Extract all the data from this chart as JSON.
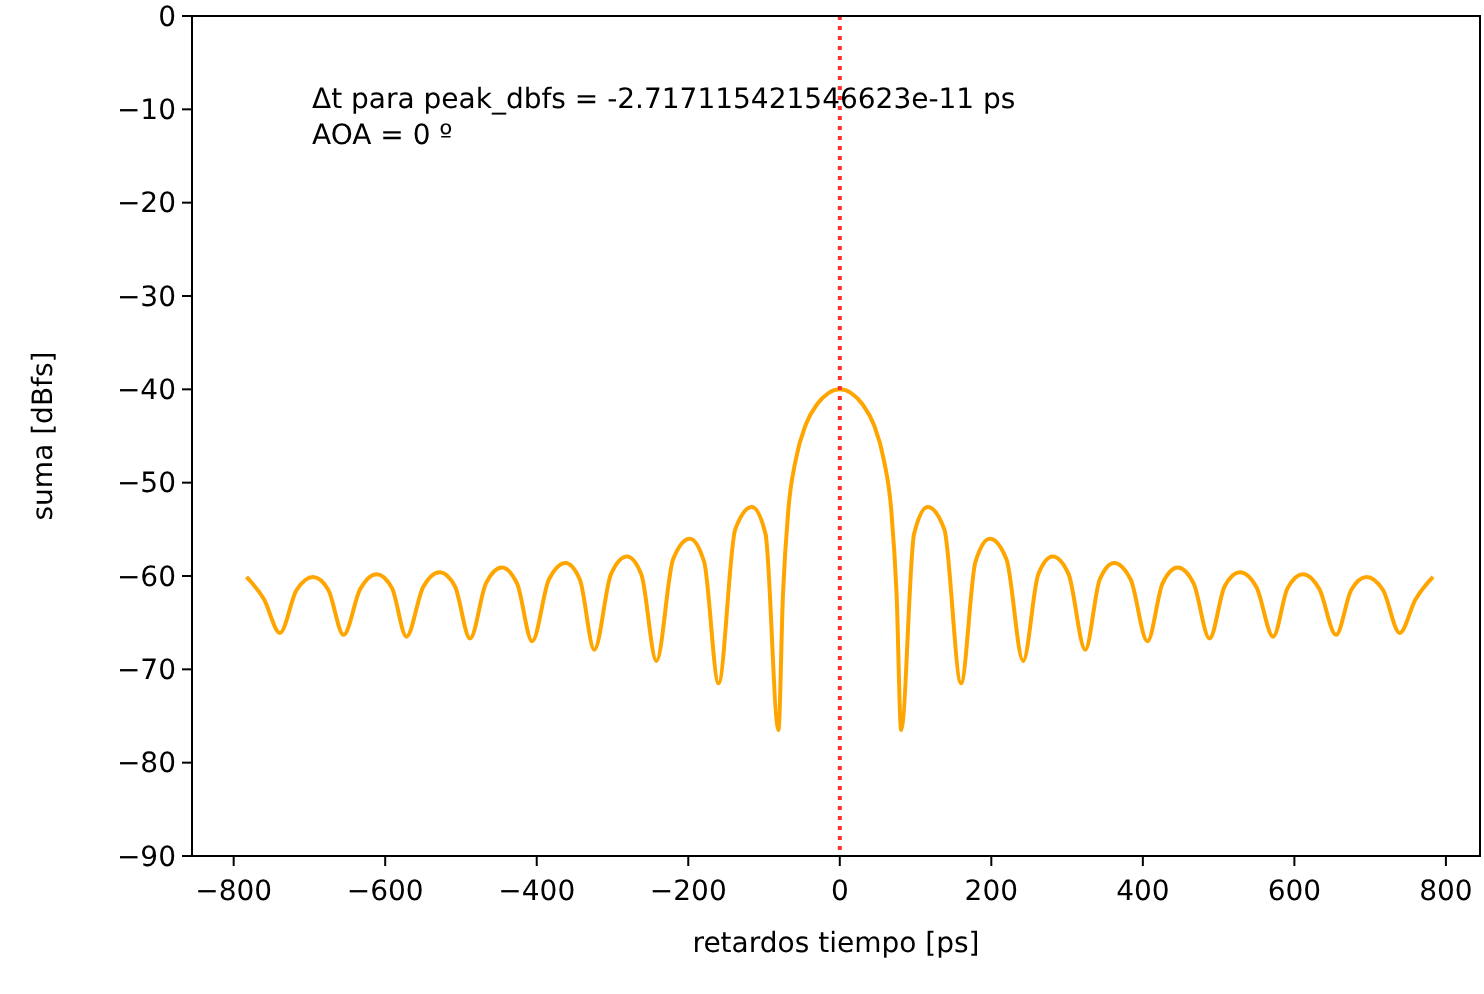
{
  "chart_data": {
    "type": "line",
    "xlabel": "retardos tiempo [ps]",
    "ylabel": "suma [dBfs]",
    "annotations": [
      "Δt para peak_dbfs = -2.717115421546623e-11 ps",
      "AOA = 0 º"
    ],
    "xlim": [
      -855,
      845
    ],
    "ylim": [
      -90,
      0
    ],
    "xticks": [
      -800,
      -600,
      -400,
      -200,
      0,
      200,
      400,
      600,
      800
    ],
    "yticks": [
      -90,
      -80,
      -70,
      -60,
      -50,
      -40,
      -30,
      -20,
      -10,
      0
    ],
    "grid": false,
    "marker": "none",
    "line_style": "solid",
    "ref_lines": [
      {
        "axis": "x",
        "value": 0,
        "color": "#ff3030",
        "line_style": "dotted"
      }
    ],
    "series": [
      {
        "color": "#ffa500",
        "x": [
          -783,
          -760,
          -739,
          -717,
          -695,
          -675,
          -655,
          -633,
          -611,
          -591,
          -572,
          -550,
          -528,
          -508,
          -488,
          -467,
          -446,
          -426,
          -406,
          -384,
          -362,
          -343,
          -324,
          -302,
          -281,
          -262,
          -242,
          -220,
          -198,
          -179,
          -160,
          -138,
          -116,
          -98,
          -81,
          -75,
          -68,
          -58,
          -45,
          -30,
          -15,
          0,
          15,
          30,
          45,
          58,
          68,
          75,
          81,
          98,
          116,
          138,
          160,
          179,
          198,
          220,
          242,
          262,
          281,
          302,
          324,
          343,
          362,
          384,
          406,
          426,
          446,
          467,
          488,
          508,
          528,
          550,
          572,
          591,
          611,
          633,
          655,
          675,
          695,
          717,
          739,
          760,
          783
        ],
        "values": [
          -60.1,
          -62.5,
          -66.1,
          -61.5,
          -60.1,
          -61.5,
          -66.3,
          -61.4,
          -59.8,
          -61.3,
          -66.5,
          -61.2,
          -59.6,
          -61.1,
          -66.7,
          -60.8,
          -59.1,
          -60.8,
          -67.0,
          -60.4,
          -58.6,
          -60.4,
          -67.9,
          -59.8,
          -57.9,
          -59.8,
          -69.1,
          -58.2,
          -56.0,
          -58.5,
          -71.5,
          -55.0,
          -52.6,
          -55.5,
          -76.5,
          -62,
          -53,
          -47.5,
          -43.8,
          -41.6,
          -40.4,
          -40,
          -40.4,
          -41.6,
          -43.8,
          -47.5,
          -53,
          -62,
          -76.5,
          -55.5,
          -52.6,
          -55.0,
          -71.5,
          -58.5,
          -56.0,
          -58.2,
          -69.1,
          -59.8,
          -57.9,
          -59.8,
          -67.9,
          -60.4,
          -58.6,
          -60.4,
          -67.0,
          -60.8,
          -59.1,
          -60.8,
          -66.7,
          -61.1,
          -59.6,
          -61.2,
          -66.5,
          -61.3,
          -59.8,
          -61.4,
          -66.3,
          -61.5,
          -60.1,
          -61.5,
          -66.1,
          -62.5,
          -60.1
        ]
      }
    ]
  }
}
